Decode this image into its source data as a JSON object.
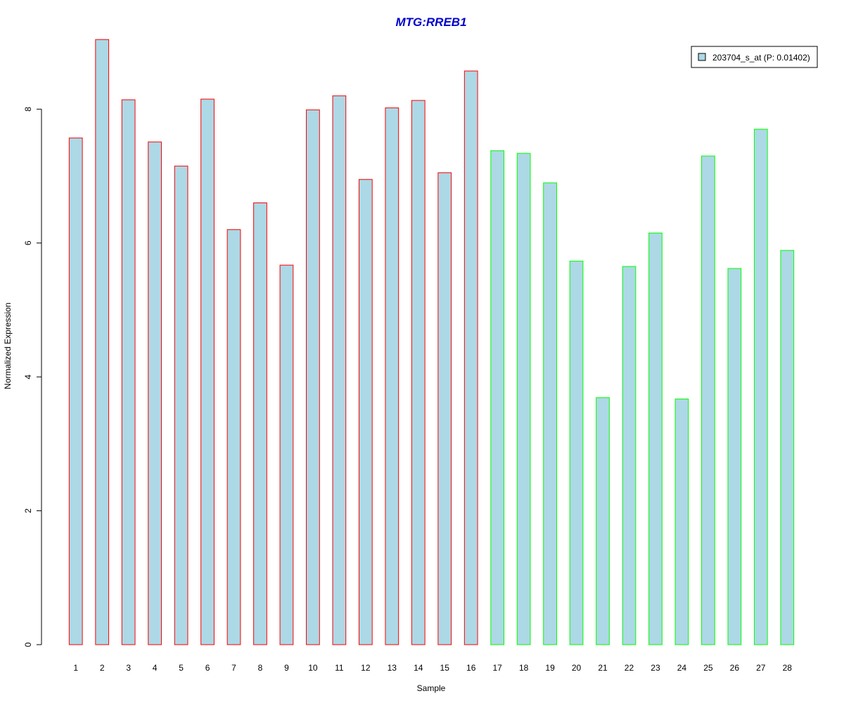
{
  "chart_data": {
    "type": "bar",
    "title": "MTG:RREB1",
    "xlabel": "Sample",
    "ylabel": "Normalized Expression",
    "categories": [
      "1",
      "2",
      "3",
      "4",
      "5",
      "6",
      "7",
      "8",
      "9",
      "10",
      "11",
      "12",
      "13",
      "14",
      "15",
      "16",
      "17",
      "18",
      "19",
      "20",
      "21",
      "22",
      "23",
      "24",
      "25",
      "26",
      "27",
      "28"
    ],
    "series": [
      {
        "name": "203704_s_at (P: 0.01402)",
        "values": [
          7.57,
          9.04,
          8.14,
          7.51,
          7.15,
          8.15,
          6.2,
          6.6,
          5.67,
          7.99,
          8.2,
          6.95,
          8.02,
          8.13,
          7.05,
          8.57,
          7.38,
          7.34,
          6.9,
          5.73,
          3.69,
          5.65,
          6.15,
          3.67,
          7.3,
          5.62,
          7.7,
          5.89
        ]
      }
    ],
    "bar_groups": [
      0,
      0,
      0,
      0,
      0,
      0,
      0,
      0,
      0,
      0,
      0,
      0,
      0,
      0,
      0,
      0,
      1,
      1,
      1,
      1,
      1,
      1,
      1,
      1,
      1,
      1,
      1,
      1
    ],
    "yticks": [
      0,
      2,
      4,
      6,
      8
    ],
    "ylim": [
      0,
      9.2
    ],
    "grid": false,
    "legend_position": "top-right",
    "colors": {
      "title": "#0000CC",
      "bar_fill": "#ADD8E6",
      "group_borders": [
        "#FF0000",
        "#00FF00"
      ]
    }
  }
}
